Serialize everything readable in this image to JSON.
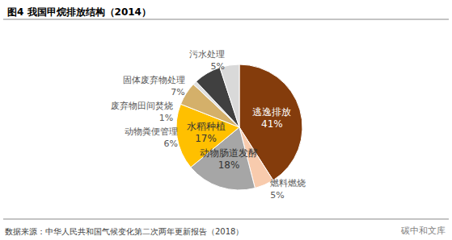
{
  "chart_data": {
    "type": "pie",
    "title": "图4 我国甲烷排放结构（2014）",
    "categories": [
      "逃逸排放",
      "燃料燃烧",
      "动物肠道发酵",
      "水稻种植",
      "动物粪便管理",
      "废弃物田间焚烧",
      "固体废弃物处理",
      "污水处理"
    ],
    "values": [
      41,
      5,
      18,
      17,
      6,
      1,
      7,
      5
    ],
    "value_labels": [
      "41%",
      "5%",
      "18%",
      "17%",
      "6%",
      "1%",
      "7%",
      "5%"
    ],
    "colors": [
      "#843c0c",
      "#f8cbad",
      "#a6a6a6",
      "#ffc000",
      "#d4b06a",
      "#e0e0e0",
      "#404040",
      "#d9d9d9"
    ],
    "data_labels": true,
    "annotations": [
      "数据来源：中华人民共和国气候变化第二次两年更新报告（2018）",
      "碳中和文库"
    ]
  }
}
